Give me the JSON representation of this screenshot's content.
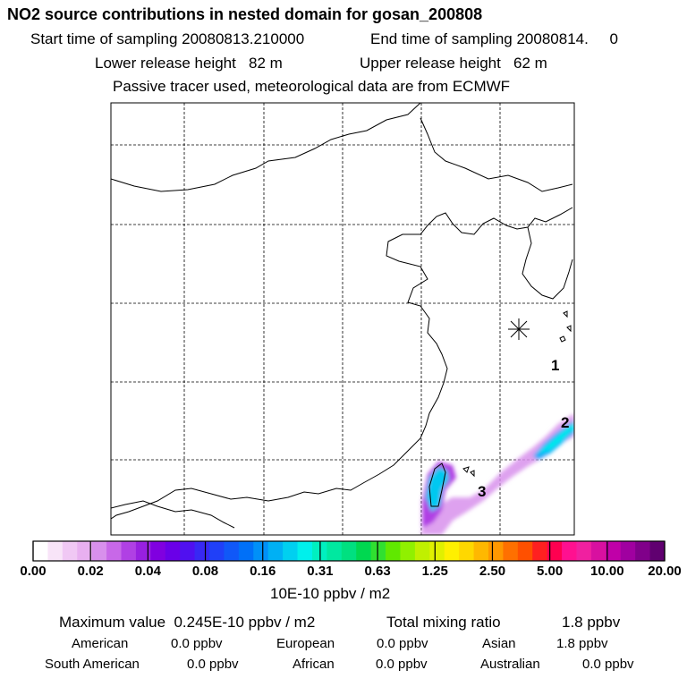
{
  "header": {
    "title": "NO2 source contributions in nested domain for gosan_200808",
    "start_sampling": "Start time of sampling 20080813.210000",
    "end_sampling": "End time of sampling 20080814.     0",
    "lower_release": "Lower release height   82 m",
    "upper_release": "Upper release height   62 m",
    "tracer_note": "Passive tracer used, meteorological data are from ECMWF"
  },
  "chart_data": {
    "type": "heatmap",
    "title": "NO2 source contributions in nested domain for gosan_200808",
    "colorbar": {
      "units": "10E-10 ppbv / m2",
      "tick_labels": [
        "0.00",
        "0.02",
        "0.04",
        "0.08",
        "0.16",
        "0.31",
        "0.63",
        "1.25",
        "2.50",
        "5.00",
        "10.00",
        "20.00"
      ],
      "colors": [
        "#ffffff",
        "#f8e4f8",
        "#f0c8f4",
        "#e8b0f0",
        "#d890ec",
        "#c868e8",
        "#b040e4",
        "#9820e0",
        "#8000e0",
        "#6a00e8",
        "#5010f0",
        "#3828f4",
        "#2040f8",
        "#1058f8",
        "#0070f8",
        "#0090f8",
        "#00b0f4",
        "#00d0f0",
        "#00f0ec",
        "#00f0c0",
        "#00e8a0",
        "#00e080",
        "#00d850",
        "#30e030",
        "#60e800",
        "#90f000",
        "#c0f000",
        "#e0f000",
        "#fff000",
        "#ffd800",
        "#ffb800",
        "#ff9800",
        "#ff7000",
        "#ff5000",
        "#ff2020",
        "#ff0050",
        "#ff1090",
        "#f020a0",
        "#d810a0",
        "#c000a8",
        "#a000a0",
        "#80008a",
        "#600070"
      ]
    },
    "site_marker": "gosan",
    "region_labels": [
      "1",
      "2",
      "3"
    ],
    "max_value_text": "Maximum value  0.245E-10 ppbv / m2",
    "total_mixing_ratio_label": "Total mixing ratio",
    "total_mixing_ratio_value": "1.8 ppbv",
    "contributions": [
      {
        "region": "American",
        "value": "0.0 ppbv"
      },
      {
        "region": "European",
        "value": "0.0 ppbv"
      },
      {
        "region": "Asian",
        "value": "1.8 ppbv"
      },
      {
        "region": "South American",
        "value": "0.0 ppbv"
      },
      {
        "region": "African",
        "value": "0.0 ppbv"
      },
      {
        "region": "Australian",
        "value": "0.0 ppbv"
      }
    ]
  }
}
